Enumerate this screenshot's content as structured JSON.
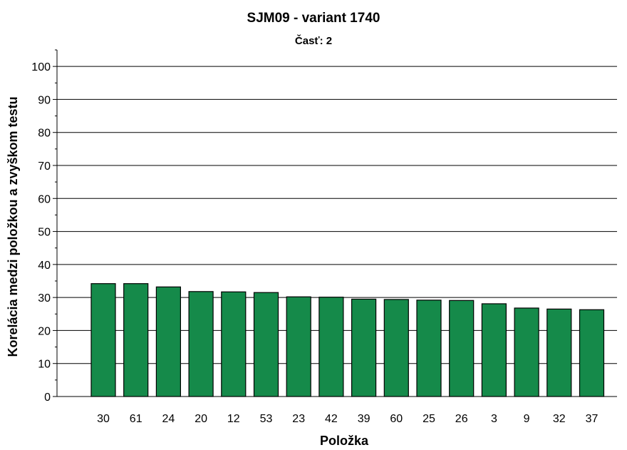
{
  "chart_data": {
    "type": "bar",
    "title": "SJM09 - variant 1740",
    "subtitle": "Časť: 2",
    "xlabel": "Položka",
    "ylabel": "Korelácia medzi položkou a zvyškom testu",
    "categories": [
      "30",
      "61",
      "24",
      "20",
      "12",
      "53",
      "23",
      "42",
      "39",
      "60",
      "25",
      "26",
      "3",
      "9",
      "32",
      "37"
    ],
    "values": [
      34.2,
      34.2,
      33.2,
      31.8,
      31.7,
      31.5,
      30.2,
      30.1,
      29.5,
      29.4,
      29.2,
      29.1,
      28.1,
      26.8,
      26.5,
      26.3
    ],
    "ylim": [
      0,
      105
    ],
    "yticks": [
      0,
      10,
      20,
      30,
      40,
      50,
      60,
      70,
      80,
      90,
      100
    ],
    "grid": true,
    "bar_color": "#158a4a"
  }
}
